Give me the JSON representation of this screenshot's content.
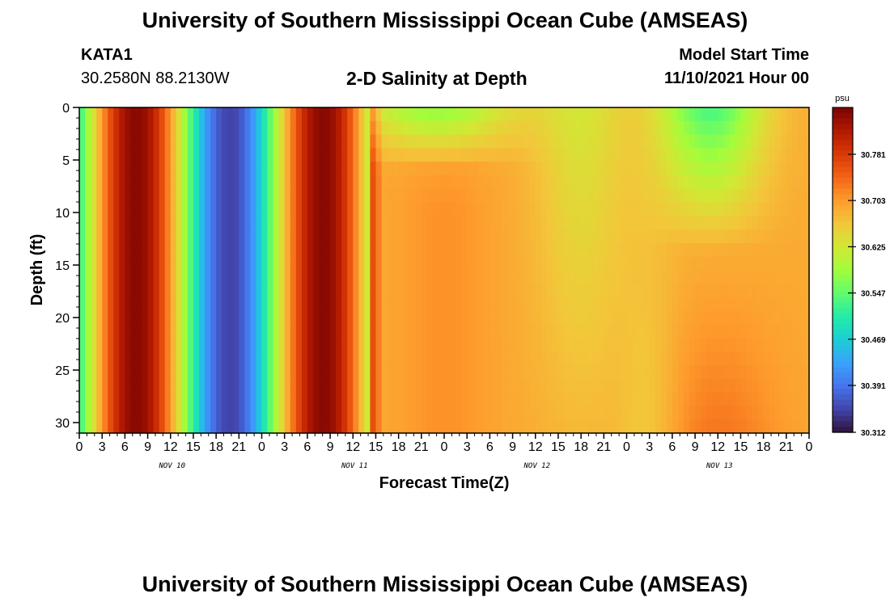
{
  "header": {
    "title": "University of Southern Mississippi Ocean Cube (AMSEAS)",
    "station": "KATA1",
    "coords": "30.2580N  88.2130W",
    "subtitle": "2-D Salinity at Depth",
    "model_start_label": "Model Start Time",
    "model_start_value": "11/10/2021 Hour 00"
  },
  "footer_title": "University of Southern Mississippi Ocean Cube (AMSEAS)",
  "chart_data": {
    "type": "heatmap",
    "title": "2-D Salinity at Depth",
    "xlabel": "Forecast Time(Z)",
    "ylabel": "Depth (ft)",
    "x_tick_labels": [
      "0",
      "3",
      "6",
      "9",
      "12",
      "15",
      "18",
      "21",
      "0",
      "3",
      "6",
      "9",
      "12",
      "15",
      "18",
      "21",
      "0",
      "3",
      "6",
      "9",
      "12",
      "15",
      "18",
      "21",
      "0",
      "3",
      "6",
      "9",
      "12",
      "15",
      "18",
      "21",
      "0"
    ],
    "x_range_hours": [
      0,
      96
    ],
    "day_labels": [
      {
        "label": "NOV 10",
        "center_hour": 12
      },
      {
        "label": "NOV 11",
        "center_hour": 36
      },
      {
        "label": "NOV 12",
        "center_hour": 60
      },
      {
        "label": "NOV 13",
        "center_hour": 84
      }
    ],
    "y_tick_labels": [
      "0",
      "5",
      "10",
      "15",
      "20",
      "25",
      "30"
    ],
    "y_range_ft": [
      0,
      31
    ],
    "y_reversed": true,
    "colorbar": {
      "unit": "psu",
      "min": 30.312,
      "max": 30.86,
      "tick_labels": [
        "30.781",
        "30.703",
        "30.625",
        "30.547",
        "30.469",
        "30.391",
        "30.312"
      ],
      "tick_values": [
        30.781,
        30.703,
        30.625,
        30.547,
        30.469,
        30.391,
        30.312
      ],
      "colormap": [
        "#30123b",
        "#4145ab",
        "#4675ed",
        "#39a2fc",
        "#1bcfd4",
        "#24eca6",
        "#61fc6c",
        "#a4fc3b",
        "#d1e834",
        "#f3c63a",
        "#fe9b2d",
        "#f36315",
        "#d93806",
        "#b11901",
        "#7a0403"
      ]
    },
    "salinity_profile_description": "depth-time salinity field in psu",
    "grid": false
  }
}
